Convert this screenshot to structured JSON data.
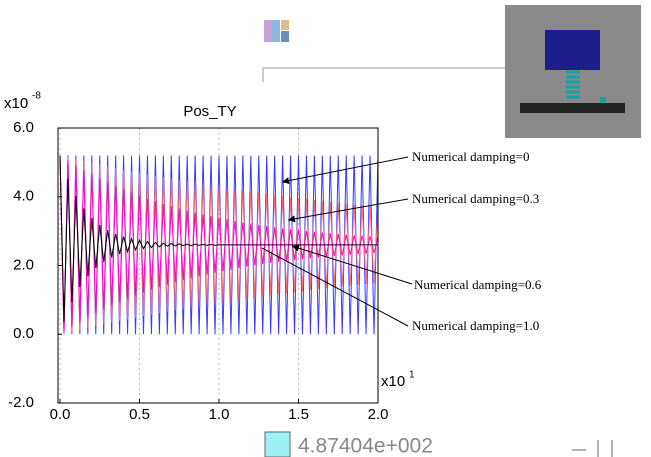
{
  "status_value": "4.87404e+002",
  "chart_data": {
    "type": "line",
    "title": "Pos_TY",
    "y_scale": {
      "base": "x10",
      "exponent": "-8"
    },
    "x_scale": {
      "base": "x10",
      "exponent": "1"
    },
    "annotations": [
      "Numerical damping=0",
      "Numerical damping=0.3",
      "Numerical damping=0.6",
      "Numerical damping=1.0"
    ],
    "xlim": [
      0,
      2
    ],
    "ylim": [
      -2,
      6
    ],
    "grid": "x",
    "xticks": [
      {
        "value": 0,
        "label": "0.0"
      },
      0.5,
      {
        "value": 1,
        "label": "1.0"
      },
      1.5,
      {
        "value": 2,
        "label": "2.0"
      }
    ],
    "yticks": [
      {
        "value": -2,
        "label": "-2.0"
      },
      {
        "value": 0,
        "label": "0.0"
      },
      {
        "value": 2,
        "label": "2.0"
      },
      {
        "value": 4,
        "label": "4.0"
      },
      {
        "value": 6,
        "label": "6.0"
      }
    ],
    "x": [
      0,
      0.025,
      0.05,
      0.075,
      0.1,
      0.125,
      0.15,
      0.175,
      0.2,
      0.225,
      0.25,
      0.275,
      0.3,
      0.325,
      0.35,
      0.375,
      0.4,
      0.425,
      0.45,
      0.475,
      0.5,
      0.525,
      0.55,
      0.575,
      0.6,
      0.625,
      0.65,
      0.675,
      0.7,
      0.725,
      0.75,
      0.775,
      0.8,
      0.825,
      0.85,
      0.875,
      0.9,
      0.925,
      0.95,
      0.975,
      1,
      1.025,
      1.05,
      1.075,
      1.1,
      1.125,
      1.15,
      1.175,
      1.2,
      1.225,
      1.25,
      1.275,
      1.3,
      1.325,
      1.35,
      1.375,
      1.4,
      1.425,
      1.45,
      1.475,
      1.5,
      1.525,
      1.55,
      1.575,
      1.6,
      1.625,
      1.65,
      1.675,
      1.7,
      1.725,
      1.75,
      1.775,
      1.8,
      1.825,
      1.85,
      1.875,
      1.9,
      1.925,
      1.95,
      1.975,
      2
    ],
    "series": [
      {
        "color": "#3a3aff",
        "values": [
          5.2,
          0,
          5.2,
          0,
          5.2,
          0,
          5.2,
          0,
          5.2,
          0,
          5.2,
          0,
          5.2,
          0,
          5.2,
          0,
          5.2,
          0,
          5.2,
          0,
          5.2,
          0,
          5.2,
          0,
          5.2,
          0,
          5.2,
          0,
          5.2,
          0,
          5.2,
          0,
          5.2,
          0,
          5.2,
          0,
          5.2,
          0,
          5.2,
          0,
          5.2,
          0,
          5.2,
          0,
          5.2,
          0,
          5.2,
          0,
          5.2,
          0,
          5.2,
          0,
          5.2,
          0,
          5.2,
          0,
          5.2,
          0,
          5.2,
          0,
          5.2,
          0,
          5.2,
          0,
          5.2,
          0,
          5.2,
          0,
          5.2,
          0,
          5.2,
          0,
          5.2,
          0,
          5.2,
          0,
          5.2,
          0,
          5.2,
          0,
          5.2
        ]
      },
      {
        "color": "#ff6a6a",
        "values": [
          5.2,
          0.03,
          5.15,
          0.08,
          5.09,
          0.14,
          5.04,
          0.19,
          4.99,
          0.24,
          4.94,
          0.29,
          4.89,
          0.34,
          4.84,
          0.39,
          4.79,
          0.43,
          4.74,
          0.48,
          4.7,
          0.53,
          4.65,
          0.57,
          4.61,
          0.61,
          4.57,
          0.66,
          4.52,
          0.7,
          4.48,
          0.74,
          4.44,
          0.78,
          4.4,
          0.82,
          4.37,
          0.85,
          4.33,
          0.89,
          4.29,
          0.93,
          4.26,
          0.96,
          4.22,
          1,
          4.19,
          1.03,
          4.15,
          1.07,
          4.12,
          1.1,
          4.09,
          1.13,
          4.05,
          1.16,
          4.02,
          1.19,
          3.99,
          1.22,
          3.96,
          1.25,
          3.94,
          1.28,
          3.91,
          1.31,
          3.88,
          1.34,
          3.85,
          1.36,
          3.83,
          1.39,
          3.8,
          1.41,
          3.77,
          1.44,
          3.75,
          1.46,
          3.72,
          1.49,
          3.7
        ]
      },
      {
        "color": "#ff00d0",
        "values": [
          5.2,
          0.08,
          5.05,
          0.22,
          4.91,
          0.36,
          4.77,
          0.49,
          4.65,
          0.62,
          4.53,
          0.73,
          4.41,
          0.84,
          4.31,
          0.94,
          4.21,
          1.04,
          4.12,
          1.13,
          4.03,
          1.22,
          3.94,
          1.3,
          3.87,
          1.37,
          3.79,
          1.44,
          3.72,
          1.51,
          3.66,
          1.57,
          3.6,
          1.63,
          3.54,
          1.69,
          3.48,
          1.74,
          3.43,
          1.79,
          3.38,
          1.84,
          3.34,
          1.88,
          3.29,
          1.93,
          3.25,
          1.97,
          3.22,
          2,
          3.18,
          2.04,
          3.15,
          2.07,
          3.11,
          2.1,
          3.08,
          2.13,
          3.06,
          2.16,
          3.03,
          2.18,
          3.01,
          2.21,
          2.98,
          2.23,
          2.96,
          2.25,
          2.94,
          2.27,
          2.92,
          2.29,
          2.9,
          2.31,
          2.88,
          2.33,
          2.87,
          2.34,
          2.85,
          2.36,
          2.84
        ]
      },
      {
        "color": "#000000",
        "values": [
          5.2,
          0.36,
          4.53,
          0.94,
          4.03,
          1.37,
          3.66,
          1.69,
          3.38,
          1.93,
          3.18,
          2.1,
          3.03,
          2.23,
          2.92,
          2.33,
          2.84,
          2.4,
          2.78,
          2.45,
          2.73,
          2.49,
          2.7,
          2.52,
          2.67,
          2.54,
          2.65,
          2.56,
          2.64,
          2.57,
          2.63,
          2.58,
          2.62,
          2.58,
          2.62,
          2.59,
          2.61,
          2.59,
          2.61,
          2.59,
          2.6,
          2.6,
          2.6,
          2.6,
          2.6,
          2.6,
          2.6,
          2.6,
          2.6,
          2.6,
          2.6,
          2.6,
          2.6,
          2.6,
          2.6,
          2.6,
          2.6,
          2.6,
          2.6,
          2.6,
          2.6,
          2.6,
          2.6,
          2.6,
          2.6,
          2.6,
          2.6,
          2.6,
          2.6,
          2.6,
          2.6,
          2.6,
          2.6,
          2.6,
          2.6,
          2.6,
          2.6,
          2.6,
          2.6,
          2.6,
          2.6
        ]
      }
    ]
  }
}
